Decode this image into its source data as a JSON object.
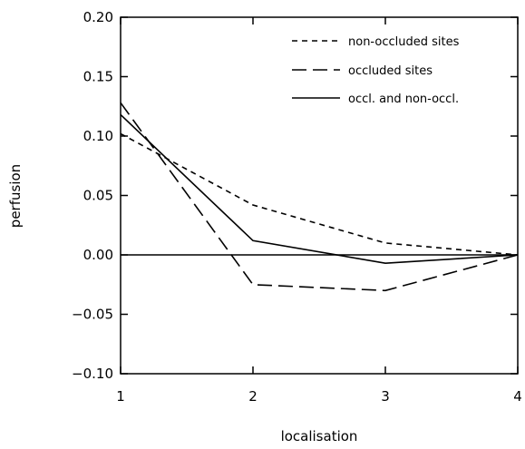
{
  "chart_data": {
    "type": "line",
    "title": "",
    "xlabel": "localisation",
    "ylabel": "perfusion",
    "x": [
      1,
      2,
      3,
      4
    ],
    "xlim": [
      1,
      4
    ],
    "ylim": [
      -0.1,
      0.2
    ],
    "x_ticks": [
      "1",
      "2",
      "3",
      "4"
    ],
    "y_ticks": [
      "0.20",
      "0.15",
      "0.10",
      "0.05",
      "0.00",
      "−0.05",
      "−0.10"
    ],
    "y_tick_values": [
      0.2,
      0.15,
      0.1,
      0.05,
      0.0,
      -0.05,
      -0.1
    ],
    "grid": false,
    "legend_position": "top-right",
    "reference_line": 0.0,
    "series": [
      {
        "name": "non-occluded sites",
        "style": "short-dash",
        "values": [
          0.102,
          0.042,
          0.01,
          0.0
        ]
      },
      {
        "name": "occluded sites",
        "style": "long-dash",
        "values": [
          0.128,
          -0.025,
          -0.03,
          0.0
        ]
      },
      {
        "name": "occl. and non-occl.",
        "style": "solid",
        "values": [
          0.118,
          0.012,
          -0.007,
          0.0
        ]
      }
    ],
    "colors": {
      "line": "#000000",
      "background": "#ffffff"
    }
  }
}
